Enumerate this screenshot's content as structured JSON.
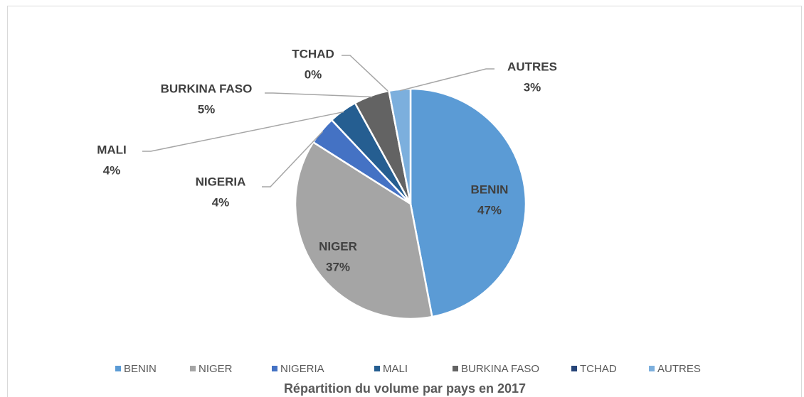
{
  "chart_data": {
    "type": "pie",
    "title": "Répartition du volume par pays en 2017",
    "categories": [
      "BENIN",
      "NIGER",
      "NIGERIA",
      "MALI",
      "BURKINA FASO",
      "TCHAD",
      "AUTRES"
    ],
    "values": [
      47,
      37,
      4,
      4,
      5,
      0,
      3
    ],
    "value_labels": [
      "47%",
      "37%",
      "4%",
      "4%",
      "5%",
      "0%",
      "3%"
    ],
    "colors": [
      "#5b9bd5",
      "#a5a5a5",
      "#4472c4",
      "#255e91",
      "#636363",
      "#264478",
      "#7cafdd"
    ],
    "legend": "bottom"
  }
}
